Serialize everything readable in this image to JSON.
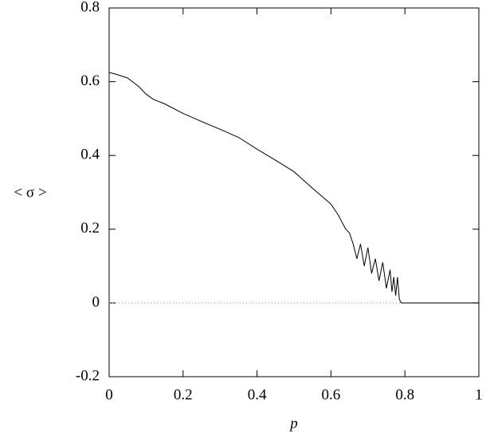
{
  "chart_data": {
    "type": "line",
    "xlabel": "p",
    "ylabel": "< σ >",
    "x": [
      0,
      0.02,
      0.05,
      0.08,
      0.1,
      0.12,
      0.15,
      0.2,
      0.25,
      0.3,
      0.35,
      0.4,
      0.45,
      0.5,
      0.55,
      0.6,
      0.62,
      0.64,
      0.65,
      0.66,
      0.67,
      0.68,
      0.69,
      0.7,
      0.71,
      0.72,
      0.73,
      0.74,
      0.75,
      0.76,
      0.765,
      0.77,
      0.775,
      0.78,
      0.785,
      0.79,
      0.8,
      0.9,
      1
    ],
    "series": [
      {
        "color": "#000000",
        "values": [
          0.625,
          0.62,
          0.61,
          0.587,
          0.566,
          0.552,
          0.54,
          0.514,
          0.492,
          0.471,
          0.449,
          0.417,
          0.387,
          0.356,
          0.311,
          0.268,
          0.238,
          0.2,
          0.19,
          0.16,
          0.12,
          0.16,
          0.1,
          0.15,
          0.08,
          0.12,
          0.06,
          0.11,
          0.04,
          0.09,
          0.03,
          0.07,
          0.02,
          0.07,
          0.01,
          0,
          0,
          0,
          0
        ]
      }
    ],
    "xlim": [
      0,
      1
    ],
    "ylim": [
      -0.2,
      0.8
    ],
    "xticks": [
      0,
      0.2,
      0.4,
      0.6,
      0.8,
      1
    ],
    "yticks": [
      -0.2,
      0,
      0.2,
      0.4,
      0.6,
      0.8
    ],
    "zero_line": true,
    "grid": false
  }
}
